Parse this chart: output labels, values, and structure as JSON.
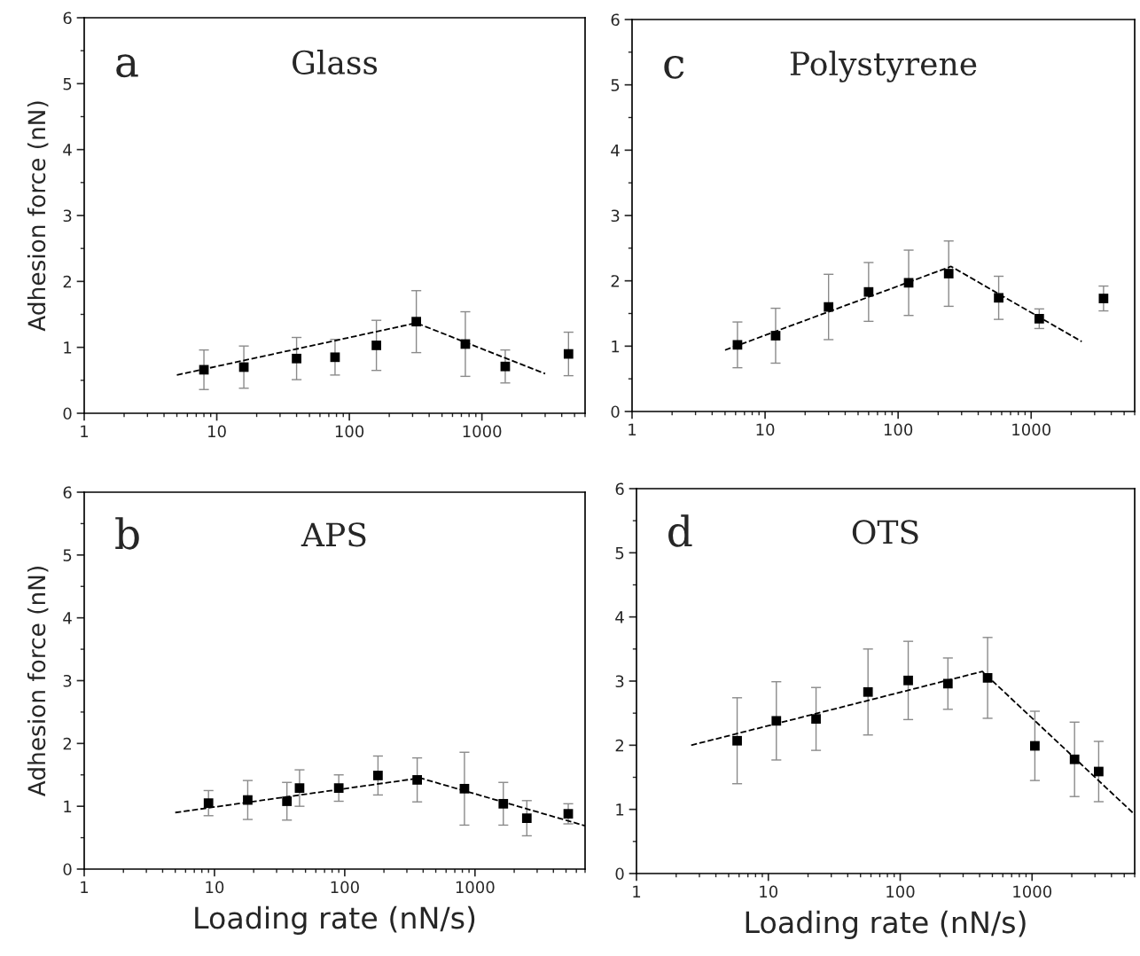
{
  "chart_data": [
    {
      "type": "scatter",
      "title": "Glass",
      "ylabel": "Adhesion force (nN)",
      "annotations": [
        "a"
      ],
      "xlim": [
        1,
        6000
      ],
      "ylim": [
        0,
        6
      ],
      "xticks": [
        1,
        10,
        100,
        1000
      ],
      "yticks": [
        0,
        1,
        2,
        3,
        4,
        5,
        6
      ],
      "log": "x",
      "tick_labels": "xy",
      "marker": "square",
      "grid": false,
      "legend": false,
      "series": [
        {
          "color": "#000000",
          "x": [
            8,
            16,
            40,
            78,
            160,
            320,
            750,
            1500,
            4500
          ],
          "values": [
            0.66,
            0.7,
            0.83,
            0.85,
            1.03,
            1.39,
            1.05,
            0.71,
            0.9
          ],
          "errors": [
            0.3,
            0.32,
            0.32,
            0.27,
            0.38,
            0.47,
            0.49,
            0.25,
            0.33
          ]
        },
        {
          "type": "line",
          "color": "#000000",
          "line_style": "dashed",
          "marker": "none",
          "x": [
            5,
            320,
            3000
          ],
          "values": [
            0.58,
            1.37,
            0.6
          ]
        }
      ]
    },
    {
      "type": "scatter",
      "title": "Polystyrene",
      "annotations": [
        "c"
      ],
      "xlim": [
        1,
        6000
      ],
      "ylim": [
        0,
        6
      ],
      "xticks": [
        1,
        10,
        100,
        1000
      ],
      "yticks": [
        0,
        1,
        2,
        3,
        4,
        5,
        6
      ],
      "log": "x",
      "marker": "square",
      "grid": false,
      "legend": false,
      "series": [
        {
          "color": "#000000",
          "x": [
            6.2,
            12,
            30,
            60,
            120,
            240,
            570,
            1150,
            3500
          ],
          "values": [
            1.02,
            1.16,
            1.6,
            1.83,
            1.97,
            2.11,
            1.74,
            1.42,
            1.73
          ],
          "errors": [
            0.35,
            0.42,
            0.5,
            0.45,
            0.5,
            0.5,
            0.33,
            0.15,
            0.19
          ]
        },
        {
          "type": "line",
          "color": "#000000",
          "line_style": "dashed",
          "marker": "none",
          "x": [
            5,
            250,
            2400
          ],
          "values": [
            0.94,
            2.22,
            1.07
          ]
        }
      ]
    },
    {
      "type": "scatter",
      "title": "APS",
      "xlabel": "Loading rate (nN/s)",
      "ylabel": "Adhesion force (nN)",
      "annotations": [
        "b"
      ],
      "xlim": [
        1,
        7000
      ],
      "ylim": [
        0,
        6
      ],
      "xticks": [
        1,
        10,
        100,
        1000
      ],
      "yticks": [
        0,
        1,
        2,
        3,
        4,
        5,
        6
      ],
      "log": "x",
      "marker": "square",
      "grid": false,
      "legend": false,
      "series": [
        {
          "color": "#000000",
          "x": [
            9,
            18,
            36,
            45,
            90,
            180,
            360,
            830,
            1650,
            2500,
            5200
          ],
          "values": [
            1.05,
            1.1,
            1.08,
            1.29,
            1.29,
            1.49,
            1.42,
            1.28,
            1.04,
            0.81,
            0.88
          ],
          "errors": [
            0.2,
            0.31,
            0.3,
            0.29,
            0.21,
            0.31,
            0.35,
            0.58,
            0.34,
            0.28,
            0.16
          ]
        },
        {
          "type": "line",
          "color": "#000000",
          "line_style": "dashed",
          "marker": "none",
          "x": [
            5,
            380,
            7000
          ],
          "values": [
            0.9,
            1.45,
            0.69
          ]
        }
      ]
    },
    {
      "type": "scatter",
      "title": "OTS",
      "xlabel": "Loading rate (nN/s)",
      "annotations": [
        "d"
      ],
      "xlim": [
        1,
        6000
      ],
      "ylim": [
        0,
        6
      ],
      "xticks": [
        1,
        10,
        100,
        1000
      ],
      "yticks": [
        0,
        1,
        2,
        3,
        4,
        5,
        6
      ],
      "log": "x",
      "marker": "square",
      "grid": false,
      "legend": false,
      "series": [
        {
          "color": "#000000",
          "x": [
            5.8,
            11.5,
            23,
            57,
            115,
            230,
            460,
            1050,
            2100,
            3200
          ],
          "values": [
            2.07,
            2.38,
            2.41,
            2.83,
            3.01,
            2.96,
            3.05,
            1.99,
            1.78,
            1.59
          ],
          "errors": [
            0.67,
            0.61,
            0.49,
            0.67,
            0.61,
            0.4,
            0.63,
            0.54,
            0.58,
            0.47
          ]
        },
        {
          "type": "line",
          "color": "#000000",
          "line_style": "dashed",
          "marker": "none",
          "x": [
            2.6,
            420,
            6000
          ],
          "values": [
            2.0,
            3.15,
            0.92
          ]
        }
      ]
    }
  ]
}
